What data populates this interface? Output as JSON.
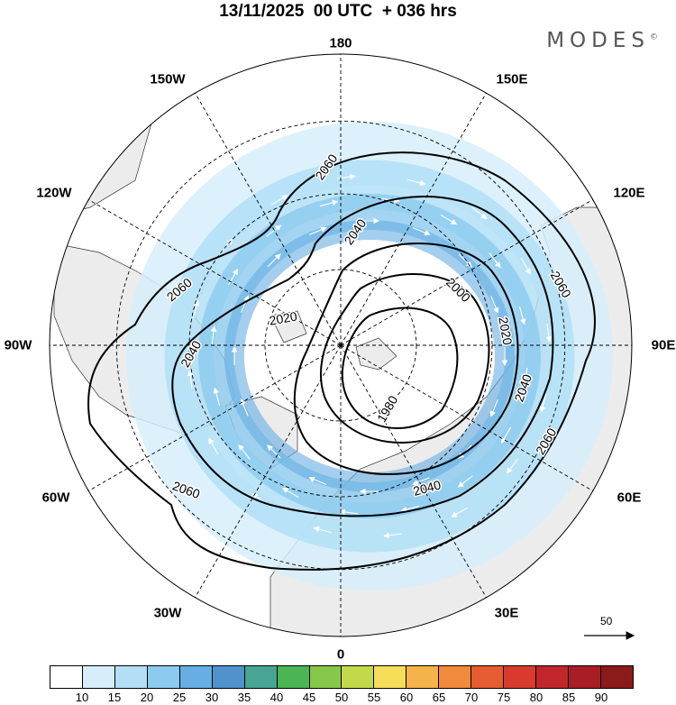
{
  "title": "13/11/2025  00 UTC  + 036 hrs",
  "brand": "MODES",
  "brand_mark": "©",
  "longitude_labels": [
    "180",
    "150E",
    "120E",
    "90E",
    "60E",
    "30E",
    "0",
    "30W",
    "60W",
    "90W",
    "120W",
    "150W"
  ],
  "contour_labels": [
    "2060",
    "2040",
    "2020",
    "2000",
    "1980"
  ],
  "scale_arrow_label": "50",
  "colorbar": {
    "ticks": [
      "10",
      "15",
      "20",
      "25",
      "30",
      "35",
      "40",
      "45",
      "50",
      "55",
      "60",
      "65",
      "70",
      "75",
      "80",
      "85",
      "90"
    ],
    "colors": [
      "#ffffff",
      "#d6eefa",
      "#b2dff6",
      "#8ccbef",
      "#67aee2",
      "#4f92cc",
      "#47a596",
      "#4bb453",
      "#86c84a",
      "#c4d94a",
      "#f6de5b",
      "#f5b349",
      "#f18a3b",
      "#e55d30",
      "#d83a2c",
      "#c0262a",
      "#a91d24",
      "#8b1a1a"
    ]
  },
  "colors": {
    "land": "#ececec",
    "ocean": "#ffffff",
    "contour": "#000000"
  }
}
